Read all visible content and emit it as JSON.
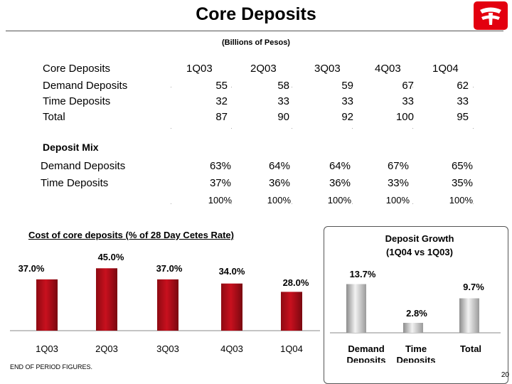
{
  "title": "Core Deposits",
  "subtitle": "(Billions of Pesos)",
  "deposits_table": {
    "header": "Core Deposits",
    "columns": [
      "1Q03",
      "2Q03",
      "3Q03",
      "4Q03",
      "1Q04"
    ],
    "rows": [
      {
        "label": "Demand Deposits",
        "values": [
          "55",
          "58",
          "59",
          "67",
          "62"
        ]
      },
      {
        "label": "Time Deposits",
        "values": [
          "32",
          "33",
          "33",
          "33",
          "33"
        ]
      },
      {
        "label": "Total",
        "values": [
          "87",
          "90",
          "92",
          "100",
          "95"
        ]
      }
    ]
  },
  "mix_table": {
    "header": "Deposit Mix",
    "rows": [
      {
        "label": "Demand Deposits",
        "values": [
          "63%",
          "64%",
          "64%",
          "67%",
          "65%"
        ]
      },
      {
        "label": "Time Deposits",
        "values": [
          "37%",
          "36%",
          "36%",
          "33%",
          "35%"
        ]
      }
    ],
    "totals": [
      "100%",
      "100%",
      "100%",
      "100%",
      "100%"
    ]
  },
  "chart_data": [
    {
      "type": "bar",
      "title": "Cost of core deposits (% of 28 Day Cetes Rate)",
      "categories": [
        "1Q03",
        "2Q03",
        "3Q03",
        "4Q03",
        "1Q04"
      ],
      "values": [
        37.0,
        45.0,
        37.0,
        34.0,
        28.0
      ],
      "labels": [
        "37.0%",
        "45.0%",
        "37.0%",
        "34.0%",
        "28.0%"
      ],
      "ylim": [
        0,
        50
      ],
      "color": "#c8101e"
    },
    {
      "type": "bar",
      "title": "Deposit Growth (1Q04 vs 1Q03)",
      "title_lines": [
        "Deposit Growth",
        "(1Q04 vs 1Q03)"
      ],
      "categories": [
        "Demand Deposits",
        "Time Deposits",
        "Total"
      ],
      "category_lines": [
        [
          "Demand",
          "Deposits"
        ],
        [
          "Time",
          "Deposits"
        ],
        [
          "Total"
        ]
      ],
      "values": [
        13.7,
        2.8,
        9.7
      ],
      "labels": [
        "13.7%",
        "2.8%",
        "9.7%"
      ],
      "ylim": [
        0,
        16
      ],
      "color": "#bdbdbd"
    }
  ],
  "footnote": "END OF PERIOD FIGURES.",
  "page_number": "20",
  "colors": {
    "accent": "#c8101e",
    "logo": "#e3000f"
  }
}
